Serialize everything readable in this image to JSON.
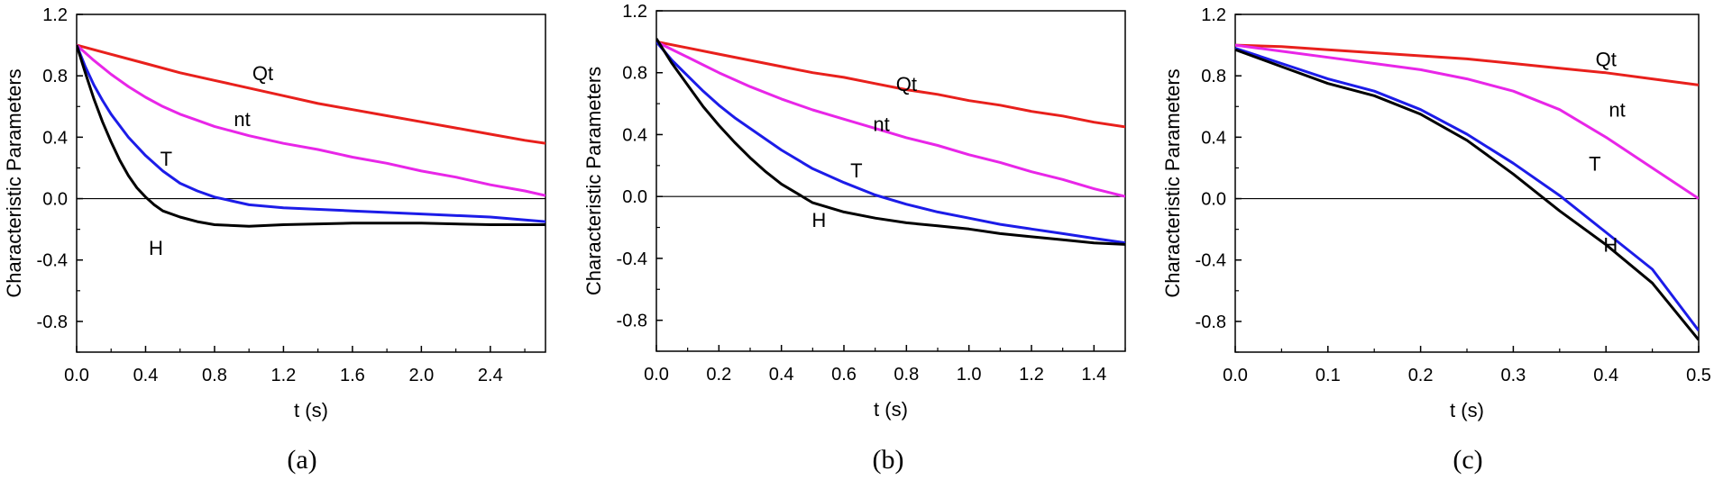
{
  "chart_data": [
    {
      "type": "line",
      "caption": "(a)",
      "xlabel": "t (s)",
      "ylabel": "Characteristic Parameters",
      "xlim": [
        0,
        2.72
      ],
      "ylim": [
        -1.0,
        1.2
      ],
      "xticks": [
        0.0,
        0.4,
        0.8,
        1.2,
        1.6,
        2.0,
        2.4
      ],
      "xtick_labels": [
        "0.0",
        "0.4",
        "0.8",
        "1.2",
        "1.6",
        "2.0",
        "2.4"
      ],
      "yticks": [
        -0.8,
        -0.4,
        0.0,
        0.4,
        0.8,
        1.2
      ],
      "ytick_labels": [
        "-0.8",
        "-0.4",
        "0.0",
        "0.4",
        "0.8",
        "1.2"
      ],
      "zero_line": true,
      "series": [
        {
          "name": "Qt",
          "color": "#e8201c",
          "label_at": [
            1.08,
            0.82
          ],
          "x": [
            0,
            0.2,
            0.4,
            0.6,
            0.8,
            1.0,
            1.2,
            1.4,
            1.6,
            1.8,
            2.0,
            2.2,
            2.4,
            2.6,
            2.72
          ],
          "y": [
            1.0,
            0.94,
            0.88,
            0.82,
            0.77,
            0.72,
            0.67,
            0.62,
            0.58,
            0.54,
            0.5,
            0.46,
            0.42,
            0.38,
            0.36
          ]
        },
        {
          "name": "nt",
          "color": "#e826e8",
          "label_at": [
            0.96,
            0.52
          ],
          "x": [
            0,
            0.1,
            0.2,
            0.3,
            0.4,
            0.5,
            0.6,
            0.7,
            0.8,
            1.0,
            1.2,
            1.4,
            1.6,
            1.8,
            2.0,
            2.2,
            2.4,
            2.6,
            2.72
          ],
          "y": [
            1.0,
            0.9,
            0.81,
            0.73,
            0.66,
            0.6,
            0.55,
            0.51,
            0.47,
            0.41,
            0.36,
            0.32,
            0.27,
            0.23,
            0.18,
            0.14,
            0.09,
            0.05,
            0.02
          ]
        },
        {
          "name": "T",
          "color": "#1c1ce8",
          "label_at": [
            0.52,
            0.26
          ],
          "x": [
            0,
            0.05,
            0.1,
            0.15,
            0.2,
            0.3,
            0.4,
            0.5,
            0.6,
            0.7,
            0.8,
            1.0,
            1.2,
            1.6,
            2.0,
            2.4,
            2.72
          ],
          "y": [
            1.0,
            0.86,
            0.74,
            0.64,
            0.55,
            0.4,
            0.28,
            0.18,
            0.1,
            0.05,
            0.01,
            -0.04,
            -0.06,
            -0.08,
            -0.1,
            -0.12,
            -0.15
          ]
        },
        {
          "name": "H",
          "color": "#000000",
          "label_at": [
            0.46,
            -0.32
          ],
          "x": [
            0,
            0.05,
            0.1,
            0.15,
            0.2,
            0.25,
            0.3,
            0.35,
            0.4,
            0.45,
            0.5,
            0.6,
            0.7,
            0.8,
            1.0,
            1.2,
            1.6,
            2.0,
            2.4,
            2.72
          ],
          "y": [
            1.0,
            0.82,
            0.65,
            0.5,
            0.37,
            0.25,
            0.15,
            0.07,
            0.01,
            -0.04,
            -0.08,
            -0.12,
            -0.15,
            -0.17,
            -0.18,
            -0.17,
            -0.16,
            -0.16,
            -0.17,
            -0.17
          ]
        }
      ]
    },
    {
      "type": "line",
      "caption": "(b)",
      "xlabel": "t (s)",
      "ylabel": "Characteristic Parameters",
      "xlim": [
        0,
        1.5
      ],
      "ylim": [
        -1.0,
        1.2
      ],
      "xticks": [
        0.0,
        0.2,
        0.4,
        0.6,
        0.8,
        1.0,
        1.2,
        1.4
      ],
      "xtick_labels": [
        "0.0",
        "0.2",
        "0.4",
        "0.6",
        "0.8",
        "1.0",
        "1.2",
        "1.4"
      ],
      "yticks": [
        -0.8,
        -0.4,
        0.0,
        0.4,
        0.8,
        1.2
      ],
      "ytick_labels": [
        "-0.8",
        "-0.4",
        "0.0",
        "0.4",
        "0.8",
        "1.2"
      ],
      "zero_line": true,
      "series": [
        {
          "name": "Qt",
          "color": "#e8201c",
          "label_at": [
            0.8,
            0.73
          ],
          "x": [
            0,
            0.1,
            0.2,
            0.3,
            0.4,
            0.5,
            0.6,
            0.7,
            0.8,
            0.9,
            1.0,
            1.1,
            1.2,
            1.3,
            1.4,
            1.5
          ],
          "y": [
            1.0,
            0.96,
            0.92,
            0.88,
            0.84,
            0.8,
            0.77,
            0.73,
            0.69,
            0.66,
            0.62,
            0.59,
            0.55,
            0.52,
            0.48,
            0.45
          ]
        },
        {
          "name": "nt",
          "color": "#e826e8",
          "label_at": [
            0.72,
            0.47
          ],
          "x": [
            0,
            0.05,
            0.1,
            0.15,
            0.2,
            0.3,
            0.4,
            0.5,
            0.6,
            0.7,
            0.8,
            0.9,
            1.0,
            1.1,
            1.2,
            1.3,
            1.4,
            1.5
          ],
          "y": [
            1.0,
            0.95,
            0.9,
            0.85,
            0.8,
            0.71,
            0.63,
            0.56,
            0.5,
            0.44,
            0.38,
            0.33,
            0.27,
            0.22,
            0.16,
            0.11,
            0.05,
            0.0
          ]
        },
        {
          "name": "T",
          "color": "#1c1ce8",
          "label_at": [
            0.64,
            0.17
          ],
          "x": [
            0,
            0.05,
            0.1,
            0.15,
            0.2,
            0.25,
            0.3,
            0.4,
            0.5,
            0.6,
            0.7,
            0.8,
            0.9,
            1.0,
            1.1,
            1.2,
            1.3,
            1.4,
            1.5
          ],
          "y": [
            1.0,
            0.88,
            0.78,
            0.68,
            0.59,
            0.51,
            0.44,
            0.3,
            0.18,
            0.09,
            0.01,
            -0.05,
            -0.1,
            -0.14,
            -0.18,
            -0.21,
            -0.24,
            -0.27,
            -0.3
          ]
        },
        {
          "name": "H",
          "color": "#000000",
          "label_at": [
            0.52,
            -0.15
          ],
          "x": [
            0,
            0.05,
            0.1,
            0.15,
            0.2,
            0.25,
            0.3,
            0.35,
            0.4,
            0.45,
            0.5,
            0.6,
            0.7,
            0.8,
            0.9,
            1.0,
            1.1,
            1.2,
            1.3,
            1.4,
            1.5
          ],
          "y": [
            1.02,
            0.86,
            0.72,
            0.58,
            0.46,
            0.35,
            0.25,
            0.16,
            0.08,
            0.02,
            -0.04,
            -0.1,
            -0.14,
            -0.17,
            -0.19,
            -0.21,
            -0.24,
            -0.26,
            -0.28,
            -0.3,
            -0.31
          ]
        }
      ]
    },
    {
      "type": "line",
      "caption": "(c)",
      "xlabel": "t (s)",
      "ylabel": "Characteristic Parameters",
      "xlim": [
        0,
        0.5
      ],
      "ylim": [
        -1.0,
        1.2
      ],
      "xticks": [
        0.0,
        0.1,
        0.2,
        0.3,
        0.4,
        0.5
      ],
      "xtick_labels": [
        "0.0",
        "0.1",
        "0.2",
        "0.3",
        "0.4",
        "0.5"
      ],
      "yticks": [
        -0.8,
        -0.4,
        0.0,
        0.4,
        0.8,
        1.2
      ],
      "ytick_labels": [
        "-0.8",
        "-0.4",
        "0.0",
        "0.4",
        "0.8",
        "1.2"
      ],
      "zero_line": true,
      "series": [
        {
          "name": "Qt",
          "color": "#e8201c",
          "label_at": [
            0.4,
            0.91
          ],
          "x": [
            0,
            0.05,
            0.1,
            0.15,
            0.2,
            0.25,
            0.3,
            0.35,
            0.4,
            0.45,
            0.5
          ],
          "y": [
            1.0,
            0.99,
            0.97,
            0.95,
            0.93,
            0.91,
            0.88,
            0.85,
            0.82,
            0.78,
            0.74
          ]
        },
        {
          "name": "nt",
          "color": "#e826e8",
          "label_at": [
            0.412,
            0.58
          ],
          "x": [
            0,
            0.05,
            0.1,
            0.15,
            0.2,
            0.25,
            0.3,
            0.35,
            0.4,
            0.45,
            0.5
          ],
          "y": [
            1.0,
            0.96,
            0.92,
            0.88,
            0.84,
            0.78,
            0.7,
            0.58,
            0.4,
            0.2,
            0.0
          ]
        },
        {
          "name": "T",
          "color": "#1c1ce8",
          "label_at": [
            0.388,
            0.23
          ],
          "x": [
            0,
            0.05,
            0.1,
            0.15,
            0.2,
            0.25,
            0.3,
            0.35,
            0.4,
            0.45,
            0.5
          ],
          "y": [
            0.98,
            0.88,
            0.78,
            0.7,
            0.58,
            0.42,
            0.23,
            0.02,
            -0.22,
            -0.46,
            -0.86
          ]
        },
        {
          "name": "H",
          "color": "#000000",
          "label_at": [
            0.405,
            -0.3
          ],
          "x": [
            0,
            0.05,
            0.1,
            0.15,
            0.2,
            0.25,
            0.3,
            0.35,
            0.4,
            0.45,
            0.5
          ],
          "y": [
            0.97,
            0.86,
            0.75,
            0.67,
            0.55,
            0.38,
            0.16,
            -0.08,
            -0.3,
            -0.55,
            -0.92
          ]
        }
      ]
    }
  ]
}
